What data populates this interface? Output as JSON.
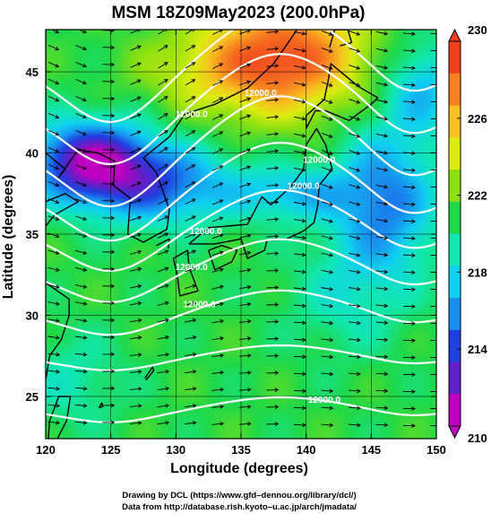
{
  "chart_data": {
    "type": "heatmap",
    "title": "MSM 18Z09May2023 (200.0hPa)",
    "xlabel": "Longitude (degrees)",
    "ylabel": "Latitude  (degrees)",
    "xlim": [
      120,
      150
    ],
    "ylim": [
      22.4,
      47.6
    ],
    "x_ticks": [
      "120",
      "125",
      "130",
      "135",
      "140",
      "145",
      "150"
    ],
    "x_tick_values": [
      120,
      125,
      130,
      135,
      140,
      145,
      150
    ],
    "y_ticks": [
      "25",
      "30",
      "35",
      "40",
      "45"
    ],
    "y_tick_values": [
      25,
      30,
      35,
      40,
      45
    ],
    "grid": true,
    "colorbar": {
      "range": [
        210,
        230
      ],
      "ticks": [
        "210",
        "214",
        "218",
        "222",
        "226",
        "230"
      ],
      "tick_values": [
        210,
        214,
        218,
        222,
        226,
        230
      ],
      "placement": "right",
      "colors": [
        "#c000c0",
        "#6020c8",
        "#2040e0",
        "#1890f0",
        "#10d0f0",
        "#10e8b0",
        "#20d848",
        "#8ce010",
        "#dcec10",
        "#f8c020",
        "#f88020",
        "#f04020"
      ]
    },
    "contour_labels": [
      {
        "text": "12000.0",
        "lon": 132.3,
        "lat": 35.0
      },
      {
        "text": "12000.0",
        "lon": 136.5,
        "lat": 43.5
      },
      {
        "text": "12000.0",
        "lon": 141.0,
        "lat": 39.4
      },
      {
        "text": "12000.0",
        "lon": 139.8,
        "lat": 37.8
      },
      {
        "text": "12000.0",
        "lon": 131.2,
        "lat": 32.8
      },
      {
        "text": "12000.0",
        "lon": 131.8,
        "lat": 30.5
      },
      {
        "text": "12000.0",
        "lon": 141.4,
        "lat": 24.6
      },
      {
        "text": "12000.0",
        "lon": 131.2,
        "lat": 42.2
      }
    ],
    "temperature_features": {
      "cold_core": {
        "lon": 123.5,
        "lat": 39.5,
        "value": 211
      },
      "warm_core": {
        "lon": 138.5,
        "lat": 46.0,
        "value": 229
      },
      "warm_ridge": {
        "lon": 143.0,
        "lat": 31.0,
        "value": 219
      },
      "background": 221
    },
    "wind_pattern": "zonal westerlies with a ridge over northern Japan and a trough over the Korean peninsula"
  },
  "credits": {
    "line1": "Drawing by DCL (https://www.gfd–dennou.org/library/dcl/)",
    "line2": "Data from http://database.rish.kyoto–u.ac.jp/arch/jmadata/"
  }
}
